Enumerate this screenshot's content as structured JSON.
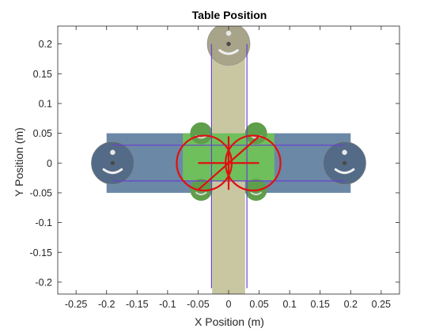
{
  "chart_data": {
    "type": "scatter",
    "title": "Table Position",
    "xlabel": "X Position (m)",
    "ylabel": "Y Position (m)",
    "xlim": [
      -0.28,
      0.28
    ],
    "ylim": [
      -0.22,
      0.23
    ],
    "x_ticks": [
      -0.25,
      -0.2,
      -0.15,
      -0.1,
      -0.05,
      0,
      0.05,
      0.1,
      0.15,
      0.2,
      0.25
    ],
    "x_tick_labels": [
      "-0.25",
      "-0.2",
      "-0.15",
      "-0.1",
      "-0.05",
      "0",
      "0.05",
      "0.1",
      "0.15",
      "0.2",
      "0.25"
    ],
    "y_ticks": [
      -0.2,
      -0.15,
      -0.1,
      -0.05,
      0,
      0.05,
      0.1,
      0.15,
      0.2
    ],
    "y_tick_labels": [
      "-0.2",
      "-0.15",
      "-0.1",
      "-0.05",
      "0",
      "0.05",
      "0.1",
      "0.15",
      "0.2"
    ],
    "grid": false,
    "colors": {
      "horizontal_table": "#6b88a6",
      "vertical_rail": "#c8c7a2",
      "carriage": "#6fbf5d",
      "x_motor": "#546b87",
      "y_motor": "#a7a48a",
      "small_pulley": "#5f9e4a",
      "belt": "#6a3fd0",
      "trace": "#e01010"
    },
    "scene": {
      "horizontal_table": {
        "x": [
          -0.2,
          0.2
        ],
        "y": [
          -0.05,
          0.05
        ]
      },
      "vertical_rail": {
        "x": [
          -0.027,
          0.027
        ],
        "y": [
          -0.23,
          0.21
        ]
      },
      "carriage": {
        "x": [
          -0.075,
          0.075
        ],
        "y": [
          -0.03,
          0.05
        ]
      },
      "x_motors": [
        {
          "x": -0.19,
          "y": 0,
          "r": 0.035
        },
        {
          "x": 0.19,
          "y": 0,
          "r": 0.035
        }
      ],
      "y_motor": {
        "x": 0,
        "y": 0.2,
        "r": 0.035
      },
      "small_pulleys": [
        {
          "x": -0.045,
          "y": 0.05,
          "r": 0.018
        },
        {
          "x": 0.045,
          "y": 0.05,
          "r": 0.018
        },
        {
          "x": -0.045,
          "y": -0.045,
          "r": 0.018
        },
        {
          "x": 0.045,
          "y": -0.045,
          "r": 0.018
        }
      ],
      "belts": [
        [
          [
            -0.19,
            0.03
          ],
          [
            0.19,
            0.03
          ]
        ],
        [
          [
            -0.19,
            -0.03
          ],
          [
            0.19,
            -0.03
          ]
        ],
        [
          [
            -0.028,
            0.2
          ],
          [
            -0.028,
            -0.21
          ]
        ],
        [
          [
            0.03,
            0.2
          ],
          [
            0.03,
            -0.21
          ]
        ]
      ]
    },
    "trace": {
      "circles": [
        {
          "cx": -0.04,
          "cy": 0,
          "r": 0.045
        },
        {
          "cx": 0.04,
          "cy": 0,
          "r": 0.045
        }
      ],
      "segments": [
        [
          [
            -0.05,
            0
          ],
          [
            0.05,
            0
          ]
        ],
        [
          [
            0,
            -0.045
          ],
          [
            0,
            0.045
          ]
        ],
        [
          [
            -0.05,
            -0.045
          ],
          [
            0.05,
            0.045
          ]
        ]
      ]
    }
  }
}
